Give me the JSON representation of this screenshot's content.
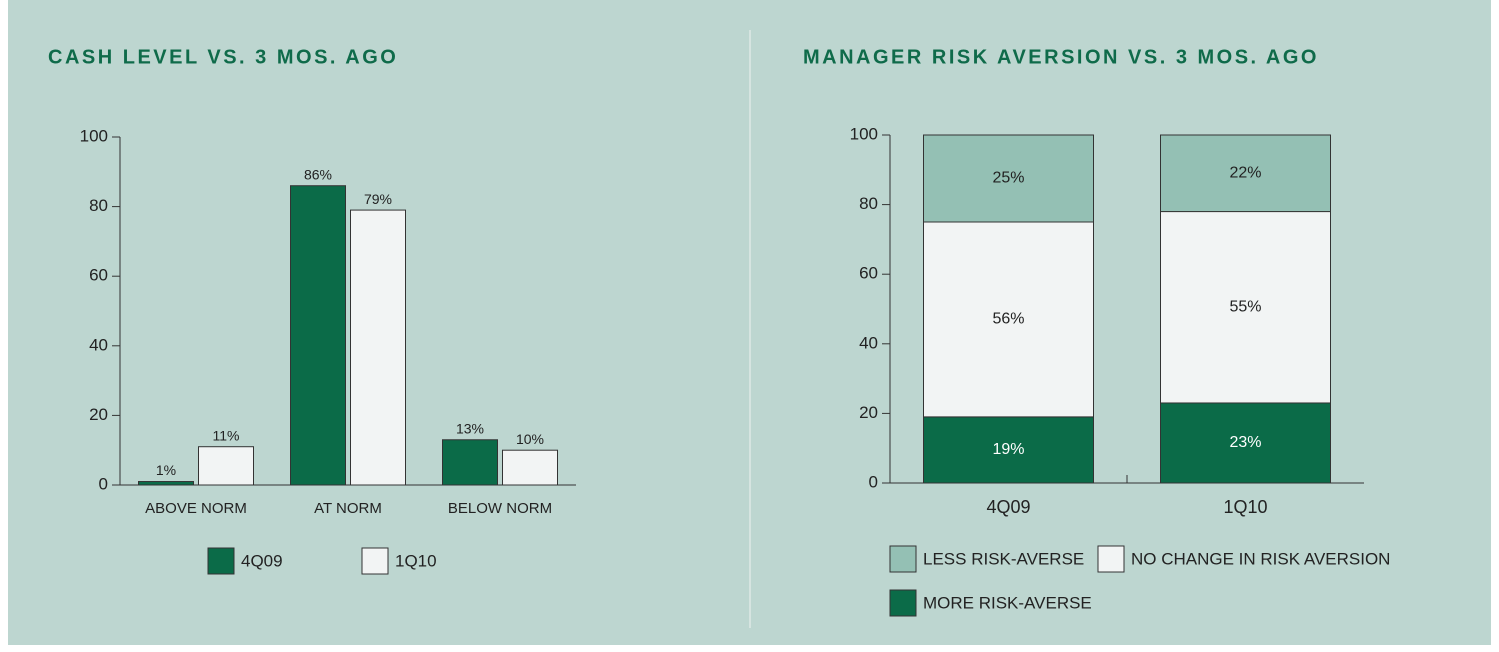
{
  "chart_data": [
    {
      "type": "bar",
      "title": "CASH LEVEL VS. 3 MOS. AGO",
      "categories": [
        "ABOVE NORM",
        "AT NORM",
        "BELOW NORM"
      ],
      "series": [
        {
          "name": "4Q09",
          "color": "#0b6b48",
          "values": [
            1,
            86,
            13
          ],
          "value_labels": [
            "1%",
            "86%",
            "13%"
          ]
        },
        {
          "name": "1Q10",
          "color": "#f2f4f4",
          "values": [
            11,
            79,
            10
          ],
          "value_labels": [
            "11%",
            "79%",
            "10%"
          ]
        }
      ],
      "ylim": [
        0,
        100
      ],
      "yticks": [
        0,
        20,
        40,
        60,
        80,
        100
      ],
      "grid": false,
      "stacked": false
    },
    {
      "type": "bar",
      "title": "MANAGER RISK AVERSION VS. 3 MOS. AGO",
      "categories": [
        "4Q09",
        "1Q10"
      ],
      "series": [
        {
          "name": "MORE RISK-AVERSE",
          "color": "#0b6b48",
          "values": [
            19,
            23
          ],
          "value_labels": [
            "19%",
            "23%"
          ]
        },
        {
          "name": "NO CHANGE IN RISK AVERSION",
          "color": "#f2f4f4",
          "values": [
            56,
            55
          ],
          "value_labels": [
            "56%",
            "55%"
          ]
        },
        {
          "name": "LESS RISK-AVERSE",
          "color": "#94c0b4",
          "values": [
            25,
            22
          ],
          "value_labels": [
            "25%",
            "22%"
          ]
        }
      ],
      "ylim": [
        0,
        100
      ],
      "yticks": [
        0,
        20,
        40,
        60,
        80,
        100
      ],
      "grid": false,
      "stacked": true
    }
  ]
}
